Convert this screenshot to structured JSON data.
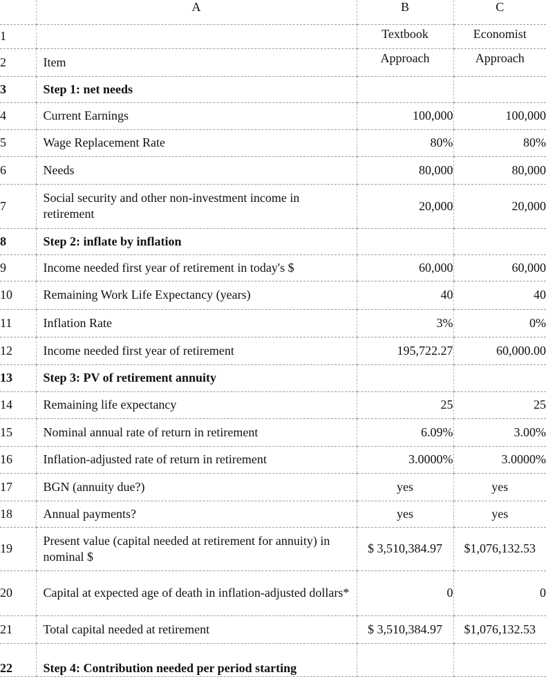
{
  "columns": [
    "",
    "A",
    "B",
    "C"
  ],
  "rows": [
    {
      "n": "1",
      "a": "",
      "b": "Textbook",
      "c": "Economist",
      "bold": false
    },
    {
      "n": "2",
      "a": "Item",
      "b": "Approach",
      "c": "Approach",
      "bold": false
    },
    {
      "n": "3",
      "a": "Step 1: net needs",
      "b": "",
      "c": "",
      "bold": true
    },
    {
      "n": "4",
      "a": "Current Earnings",
      "b": "100,000",
      "c": "100,000",
      "bold": false
    },
    {
      "n": "5",
      "a": "Wage Replacement Rate",
      "b": "80%",
      "c": "80%",
      "bold": false
    },
    {
      "n": "6",
      "a": "Needs",
      "b": "80,000",
      "c": "80,000",
      "bold": false
    },
    {
      "n": "7",
      "a": "Social security and other non-investment income in retirement",
      "b": "20,000",
      "c": "20,000",
      "bold": false
    },
    {
      "n": "8",
      "a": "Step 2: inflate by inflation",
      "b": "",
      "c": "",
      "bold": true
    },
    {
      "n": "9",
      "a": "Income needed first year of retirement in today's $",
      "b": "60,000",
      "c": "60,000",
      "bold": false
    },
    {
      "n": "10",
      "a": "Remaining Work Life Expectancy (years)",
      "b": "40",
      "c": "40",
      "bold": false
    },
    {
      "n": "11",
      "a": "Inflation Rate",
      "b": "3%",
      "c": "0%",
      "bold": false
    },
    {
      "n": "12",
      "a": "Income needed first year of retirement",
      "b": "195,722.27",
      "c": "60,000.00",
      "bold": false
    },
    {
      "n": "13",
      "a": "Step 3: PV of retirement annuity",
      "b": "",
      "c": "",
      "bold": true
    },
    {
      "n": "14",
      "a": "Remaining life expectancy",
      "b": "25",
      "c": "25",
      "bold": false
    },
    {
      "n": "15",
      "a": "Nominal annual rate of return in retirement",
      "b": "6.09%",
      "c": "3.00%",
      "bold": false
    },
    {
      "n": "16",
      "a": "Inflation-adjusted rate of return in retirement",
      "b": "3.0000%",
      "c": "3.0000%",
      "bold": false
    },
    {
      "n": "17",
      "a": "BGN (annuity due?)",
      "b": "yes",
      "c": "yes",
      "bold": false
    },
    {
      "n": "18",
      "a": "Annual payments?",
      "b": "yes",
      "c": "yes",
      "bold": false
    },
    {
      "n": "19",
      "a": "Present value (capital needed at retirement for annuity) in nominal $",
      "b": "$ 3,510,384.97",
      "c": "$1,076,132.53",
      "bold": false
    },
    {
      "n": "20",
      "a": "Capital at expected age of death in inflation-adjusted dollars*",
      "b": "0",
      "c": "0",
      "bold": false
    },
    {
      "n": "21",
      "a": "Total capital needed at retirement",
      "b": "$ 3,510,384.97",
      "c": "$1,076,132.53",
      "bold": false
    },
    {
      "n": "22",
      "a": "Step 4: Contribution needed per period starting",
      "b": "",
      "c": "",
      "bold": true
    }
  ]
}
